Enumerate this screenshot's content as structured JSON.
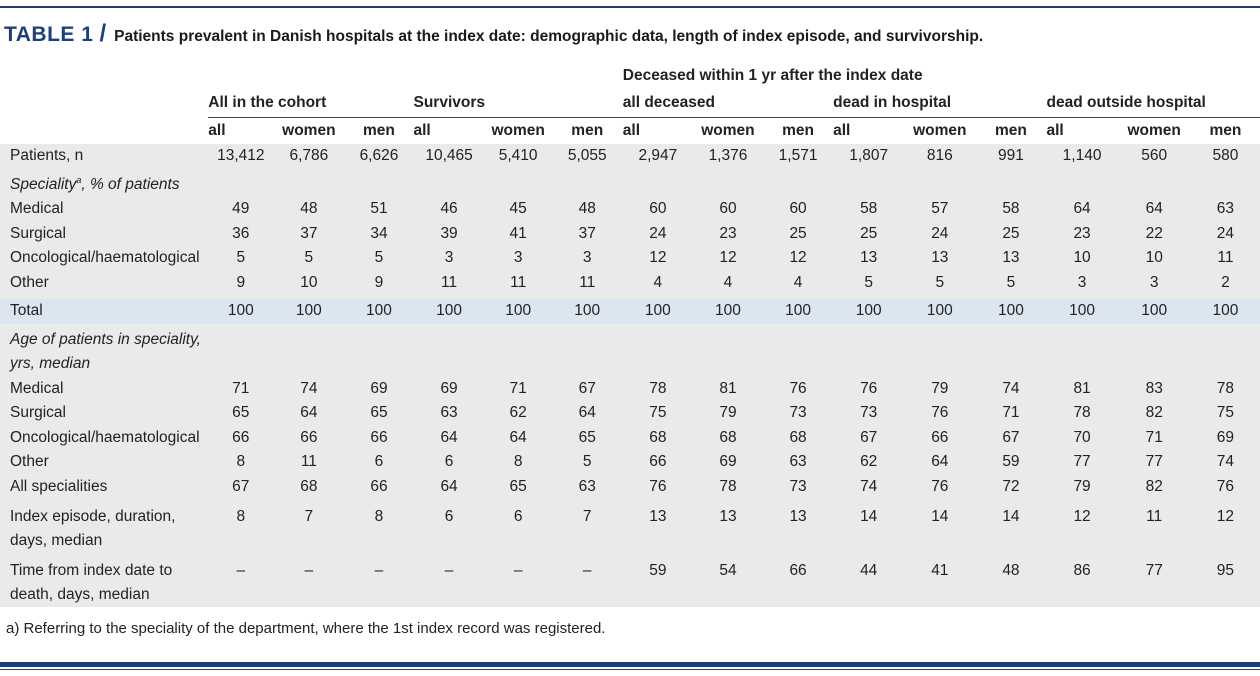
{
  "title": {
    "label": "TABLE 1",
    "slash": "/",
    "text": "Patients prevalent in Danish hospitals at the index date: demographic data, length of index episode, and survivorship."
  },
  "headers": {
    "deceased_banner": "Deceased within 1 yr after the index date",
    "groups": [
      "All in the cohort",
      "Survivors",
      "all deceased",
      "dead in hospital",
      "dead outside hospital"
    ],
    "sub": [
      "all",
      "women",
      "men"
    ]
  },
  "rows": {
    "patients": {
      "label": "Patients, n",
      "values": [
        "13,412",
        "6,786",
        "6,626",
        "10,465",
        "5,410",
        "5,055",
        "2,947",
        "1,376",
        "1,571",
        "1,807",
        "816",
        "991",
        "1,140",
        "560",
        "580"
      ]
    },
    "speciality_title": {
      "label": "Speciality",
      "sup": "a",
      "rest": ", % of patients"
    },
    "spec_medical": {
      "label": "Medical",
      "values": [
        "49",
        "48",
        "51",
        "46",
        "45",
        "48",
        "60",
        "60",
        "60",
        "58",
        "57",
        "58",
        "64",
        "64",
        "63"
      ]
    },
    "spec_surgical": {
      "label": "Surgical",
      "values": [
        "36",
        "37",
        "34",
        "39",
        "41",
        "37",
        "24",
        "23",
        "25",
        "25",
        "24",
        "25",
        "23",
        "22",
        "24"
      ]
    },
    "spec_onco": {
      "label": "Oncological/haematological",
      "values": [
        "5",
        "5",
        "5",
        "3",
        "3",
        "3",
        "12",
        "12",
        "12",
        "13",
        "13",
        "13",
        "10",
        "10",
        "11"
      ]
    },
    "spec_other": {
      "label": "Other",
      "values": [
        "9",
        "10",
        "9",
        "11",
        "11",
        "11",
        "4",
        "4",
        "4",
        "5",
        "5",
        "5",
        "3",
        "3",
        "2"
      ]
    },
    "total": {
      "label": "Total",
      "values": [
        "100",
        "100",
        "100",
        "100",
        "100",
        "100",
        "100",
        "100",
        "100",
        "100",
        "100",
        "100",
        "100",
        "100",
        "100"
      ]
    },
    "age_title": {
      "line1": "Age of patients in speciality,",
      "line2": "yrs, median"
    },
    "age_medical": {
      "label": "Medical",
      "values": [
        "71",
        "74",
        "69",
        "69",
        "71",
        "67",
        "78",
        "81",
        "76",
        "76",
        "79",
        "74",
        "81",
        "83",
        "78"
      ]
    },
    "age_surgical": {
      "label": "Surgical",
      "values": [
        "65",
        "64",
        "65",
        "63",
        "62",
        "64",
        "75",
        "79",
        "73",
        "73",
        "76",
        "71",
        "78",
        "82",
        "75"
      ]
    },
    "age_onco": {
      "label": "Oncological/haematological",
      "values": [
        "66",
        "66",
        "66",
        "64",
        "64",
        "65",
        "68",
        "68",
        "68",
        "67",
        "66",
        "67",
        "70",
        "71",
        "69"
      ]
    },
    "age_other": {
      "label": "Other",
      "values": [
        "8",
        "11",
        "6",
        "6",
        "8",
        "5",
        "66",
        "69",
        "63",
        "62",
        "64",
        "59",
        "77",
        "77",
        "74"
      ]
    },
    "age_all": {
      "label": "All specialities",
      "values": [
        "67",
        "68",
        "66",
        "64",
        "65",
        "63",
        "76",
        "78",
        "73",
        "74",
        "76",
        "72",
        "79",
        "82",
        "76"
      ]
    },
    "episode": {
      "line1": "Index episode, duration,",
      "line2": "days, median",
      "values": [
        "8",
        "7",
        "8",
        "6",
        "6",
        "7",
        "13",
        "13",
        "13",
        "14",
        "14",
        "14",
        "12",
        "11",
        "12"
      ]
    },
    "time_death": {
      "line1": "Time from index date to",
      "line2": "death, days, median",
      "values": [
        "–",
        "–",
        "–",
        "–",
        "–",
        "–",
        "59",
        "54",
        "66",
        "44",
        "41",
        "48",
        "86",
        "77",
        "95"
      ]
    }
  },
  "footnote": "a) Referring to the speciality of the department, where the 1st index record was registered.",
  "colors": {
    "brand": "#1f3f7a",
    "row_shade": "#eaeaea",
    "total_row": "#dce6f1"
  }
}
